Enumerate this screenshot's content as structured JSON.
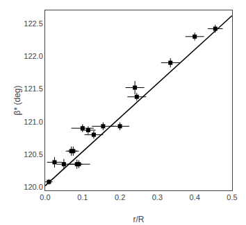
{
  "chart_data": {
    "type": "scatter",
    "xlabel": "r/R",
    "ylabel": "β* (deg)",
    "series": [
      {
        "type": "line",
        "color": "black",
        "x": [
          0.0,
          0.5
        ],
        "values": [
          120.02,
          122.62
        ]
      },
      {
        "type": "scatter",
        "color": "black",
        "marker": "square",
        "x": [
          0.01,
          0.025,
          0.05,
          0.07,
          0.075,
          0.085,
          0.09,
          0.1,
          0.115,
          0.13,
          0.155,
          0.2,
          0.24,
          0.245,
          0.335,
          0.4,
          0.455
        ],
        "values": [
          120.08,
          120.38,
          120.35,
          120.55,
          120.55,
          120.35,
          120.35,
          120.9,
          120.87,
          120.8,
          120.93,
          120.93,
          121.52,
          121.38,
          121.9,
          122.3,
          122.42
        ],
        "xerr": [
          0.01,
          0.02,
          0.02,
          0.015,
          0.015,
          0.015,
          0.03,
          0.03,
          0.02,
          0.025,
          0.03,
          0.025,
          0.025,
          0.025,
          0.025,
          0.025,
          0.02
        ],
        "yerr": [
          0.04,
          0.08,
          0.08,
          0.07,
          0.07,
          0.07,
          0.06,
          0.06,
          0.06,
          0.06,
          0.06,
          0.06,
          0.1,
          0.06,
          0.07,
          0.06,
          0.06
        ]
      }
    ],
    "xlim": [
      0.0,
      0.5
    ],
    "ylim": [
      119.95,
      122.7
    ],
    "xticks": [
      {
        "value": 0.0,
        "label": "0.0"
      },
      0.1,
      0.2,
      0.3,
      0.4,
      0.5
    ],
    "yticks": [
      {
        "value": 120.0,
        "label": "120.0"
      },
      120.5,
      {
        "value": 121.0,
        "label": "121.0"
      },
      121.5,
      {
        "value": 122.0,
        "label": "122.0"
      },
      122.5
    ],
    "grid": false
  }
}
